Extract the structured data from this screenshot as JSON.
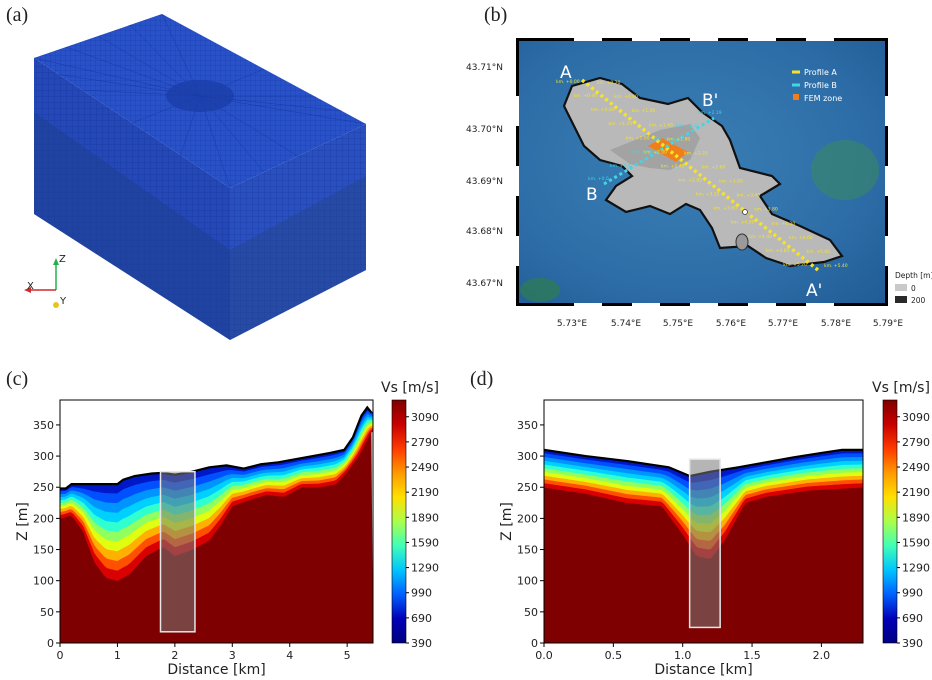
{
  "panels": {
    "a": "(a)",
    "b": "(b)",
    "c": "(c)",
    "d": "(d)"
  },
  "mesh": {
    "axes": [
      "Z",
      "X",
      "Y"
    ]
  },
  "map": {
    "lat_ticks": [
      "43.71°N",
      "43.70°N",
      "43.69°N",
      "43.68°N",
      "43.67°N"
    ],
    "lon_ticks": [
      "5.73°E",
      "5.74°E",
      "5.75°E",
      "5.76°E",
      "5.77°E",
      "5.78°E",
      "5.79°E"
    ],
    "profile_labels": [
      "A",
      "A'",
      "B",
      "B'"
    ],
    "legend": [
      "Profile A",
      "Profile B",
      "FEM zone"
    ],
    "depth_legend": {
      "title": "Depth [m]",
      "values": [
        "0",
        "200"
      ]
    },
    "km_labels_a": [
      "km. +0.00",
      "km. +0.20",
      "km. +0.40",
      "km. +0.60",
      "km. +0.80",
      "km. +1.00",
      "km. +1.20",
      "km. +1.40",
      "km. +1.60",
      "km. +1.80",
      "km. +2.00",
      "km. +2.20",
      "km. +2.40",
      "km. +2.60",
      "km. +2.80",
      "km. +3.00",
      "km. +3.20",
      "km. +3.40",
      "km. +3.60",
      "km. +3.80",
      "km. +4.00",
      "km. +4.20",
      "km. +4.40",
      "km. +4.60",
      "km. +4.80",
      "km. +5.00",
      "km. +5.20",
      "km. +5.40"
    ],
    "km_labels_b": [
      "km. +0.0",
      "km. +0.5",
      "km. +1.0",
      "km. +1.5",
      "km. +2.0",
      "km. +2.19"
    ],
    "colors": {
      "profile_a": "#f4e22e",
      "profile_b": "#3fd6e6",
      "fem": "#f07f1a",
      "basin": "#b9b9b9"
    }
  },
  "chart_data": [
    {
      "type": "heatmap",
      "panel": "c",
      "xlabel": "Distance [km]",
      "ylabel": "Z [m]",
      "xlim": [
        0,
        5.45
      ],
      "ylim": [
        0,
        390
      ],
      "xticks": [
        "0",
        "1",
        "2",
        "3",
        "4",
        "5"
      ],
      "yticks": [
        "0",
        "50",
        "100",
        "150",
        "200",
        "250",
        "300",
        "350"
      ],
      "colorbar": {
        "label": "Vs [m/s]",
        "ticks": [
          "3090",
          "2790",
          "2490",
          "2190",
          "1890",
          "1590",
          "1290",
          "990",
          "690",
          "390"
        ],
        "range": [
          390,
          3290
        ]
      },
      "surface": {
        "x": [
          0,
          0.1,
          0.2,
          1.0,
          1.1,
          1.3,
          1.6,
          1.8,
          2.0,
          2.3,
          2.6,
          2.9,
          3.2,
          3.5,
          3.8,
          4.1,
          4.4,
          4.7,
          4.95,
          5.1,
          5.25,
          5.35,
          5.42
        ],
        "z": [
          248,
          248,
          255,
          255,
          262,
          268,
          272,
          273,
          270,
          275,
          282,
          285,
          280,
          287,
          290,
          295,
          300,
          305,
          310,
          330,
          365,
          378,
          370
        ]
      },
      "bedrock": {
        "x": [
          0,
          0.2,
          0.4,
          0.6,
          0.8,
          1.0,
          1.2,
          1.5,
          1.8,
          2.0,
          2.3,
          2.6,
          2.8,
          3.0,
          3.3,
          3.6,
          3.9,
          4.2,
          4.5,
          4.8,
          5.0,
          5.2,
          5.42
        ],
        "z": [
          200,
          205,
          180,
          130,
          105,
          100,
          110,
          140,
          155,
          140,
          150,
          165,
          190,
          220,
          230,
          238,
          235,
          250,
          250,
          255,
          275,
          300,
          340
        ]
      },
      "fem_zone": {
        "x0": 1.75,
        "x1": 2.35,
        "z0": 18,
        "z1": 275
      }
    },
    {
      "type": "heatmap",
      "panel": "d",
      "xlabel": "Distance [km]",
      "ylabel": "Z [m]",
      "xlim": [
        0,
        2.3
      ],
      "ylim": [
        0,
        390
      ],
      "xticks": [
        "0.0",
        "0.5",
        "1.0",
        "1.5",
        "2.0"
      ],
      "yticks": [
        "0",
        "50",
        "100",
        "150",
        "200",
        "250",
        "300",
        "350"
      ],
      "colorbar": {
        "label": "Vs [m/s]",
        "ticks": [
          "3090",
          "2790",
          "2490",
          "2190",
          "1890",
          "1590",
          "1290",
          "990",
          "690",
          "390"
        ],
        "range": [
          390,
          3290
        ]
      },
      "surface": {
        "x": [
          0,
          0.3,
          0.6,
          0.9,
          1.05,
          1.2,
          1.4,
          1.6,
          1.8,
          2.0,
          2.15,
          2.3
        ],
        "z": [
          310,
          300,
          292,
          282,
          268,
          275,
          282,
          290,
          298,
          305,
          310,
          310
        ]
      },
      "bedrock": {
        "x": [
          0,
          0.3,
          0.6,
          0.85,
          1.0,
          1.1,
          1.2,
          1.3,
          1.45,
          1.6,
          1.9,
          2.3
        ],
        "z": [
          250,
          240,
          225,
          220,
          175,
          140,
          135,
          165,
          225,
          235,
          245,
          250
        ]
      },
      "fem_zone": {
        "x0": 1.05,
        "x1": 1.27,
        "z0": 25,
        "z1": 295
      }
    }
  ]
}
